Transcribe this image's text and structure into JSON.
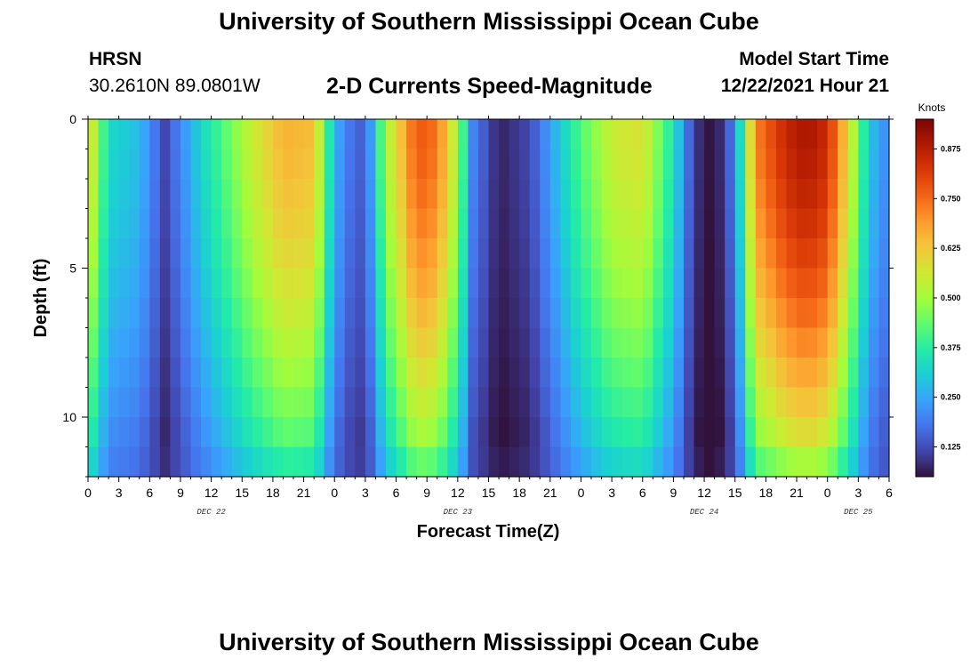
{
  "header": {
    "title": "University of Southern Mississippi Ocean Cube",
    "station": "HRSN",
    "coords": "30.2610N  89.0801W",
    "subtitle": "2-D Currents Speed-Magnitude",
    "model_start_label": "Model Start Time",
    "model_start_value": "12/22/2021 Hour 21"
  },
  "footer": {
    "title": "University of Southern Mississippi Ocean Cube"
  },
  "chart_data": {
    "type": "heatmap",
    "title": "2-D Currents Speed-Magnitude",
    "xlabel": "Forecast Time(Z)",
    "ylabel": "Depth (ft)",
    "x_tick_labels": [
      "0",
      "3",
      "6",
      "9",
      "12",
      "15",
      "18",
      "21",
      "0",
      "3",
      "6",
      "9",
      "12",
      "15",
      "18",
      "21",
      "0",
      "3",
      "6",
      "9",
      "12",
      "15",
      "18",
      "21",
      "0",
      "3",
      "6"
    ],
    "x_range_hours": [
      0,
      78
    ],
    "day_labels": [
      {
        "label": "DEC 22",
        "hour": 12
      },
      {
        "label": "DEC 23",
        "hour": 36
      },
      {
        "label": "DEC 24",
        "hour": 60
      },
      {
        "label": "DEC 25",
        "hour": 75
      }
    ],
    "y_tick_labels": [
      "0",
      "5",
      "10"
    ],
    "y_tick_values": [
      0,
      5,
      10
    ],
    "y_range_ft": [
      0,
      12
    ],
    "colorbar": {
      "unit": "Knots",
      "range": [
        0.05,
        0.95
      ],
      "tick_labels": [
        "0.125",
        "0.250",
        "0.375",
        "0.500",
        "0.625",
        "0.750",
        "0.875"
      ],
      "tick_values": [
        0.125,
        0.25,
        0.375,
        0.5,
        0.625,
        0.75,
        0.875
      ],
      "colors": [
        "#30123b",
        "#4145ab",
        "#4675ed",
        "#39a2fc",
        "#1bcfd4",
        "#24eca6",
        "#61fc6c",
        "#a4fc3b",
        "#d1e834",
        "#f3c63a",
        "#fe9b2d",
        "#f36315",
        "#d93806",
        "#b11901",
        "#7a0402"
      ]
    },
    "cell_hours": 1,
    "depth_levels": 12,
    "speed_model": {
      "surface_peak_knots": [
        {
          "hour": 0,
          "value": 0.62
        },
        {
          "hour": 2,
          "value": 0.33
        },
        {
          "hour": 5,
          "value": 0.28
        },
        {
          "hour": 7.5,
          "value": 0.12
        },
        {
          "hour": 11,
          "value": 0.32
        },
        {
          "hour": 16,
          "value": 0.55
        },
        {
          "hour": 19,
          "value": 0.66
        },
        {
          "hour": 22,
          "value": 0.64
        },
        {
          "hour": 24,
          "value": 0.27
        },
        {
          "hour": 25.5,
          "value": 0.18
        },
        {
          "hour": 27,
          "value": 0.14
        },
        {
          "hour": 29,
          "value": 0.5
        },
        {
          "hour": 32,
          "value": 0.78
        },
        {
          "hour": 34,
          "value": 0.74
        },
        {
          "hour": 36,
          "value": 0.5
        },
        {
          "hour": 37.5,
          "value": 0.2
        },
        {
          "hour": 40,
          "value": 0.07
        },
        {
          "hour": 43,
          "value": 0.12
        },
        {
          "hour": 46,
          "value": 0.3
        },
        {
          "hour": 48,
          "value": 0.42
        },
        {
          "hour": 51,
          "value": 0.55
        },
        {
          "hour": 54,
          "value": 0.58
        },
        {
          "hour": 57,
          "value": 0.35
        },
        {
          "hour": 59,
          "value": 0.1
        },
        {
          "hour": 61,
          "value": 0.04
        },
        {
          "hour": 63,
          "value": 0.2
        },
        {
          "hour": 65,
          "value": 0.72
        },
        {
          "hour": 68,
          "value": 0.86
        },
        {
          "hour": 70,
          "value": 0.9
        },
        {
          "hour": 72,
          "value": 0.85
        },
        {
          "hour": 74,
          "value": 0.6
        },
        {
          "hour": 76,
          "value": 0.3
        },
        {
          "hour": 78,
          "value": 0.2
        }
      ]
    }
  }
}
